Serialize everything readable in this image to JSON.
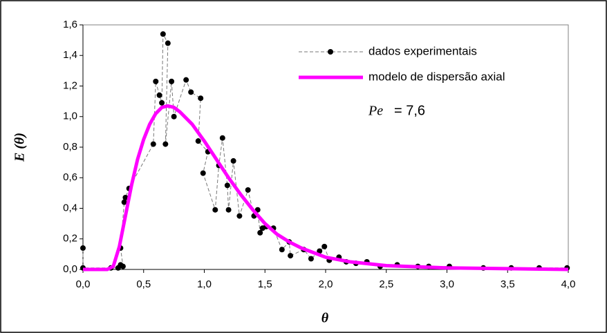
{
  "chart_data": {
    "type": "scatter-line",
    "xlabel": "θ",
    "ylabel": "E (θ)",
    "annotation": [
      "Pe",
      "= 7,6"
    ],
    "xlim": [
      0,
      4
    ],
    "ylim": [
      0,
      1.6
    ],
    "xticks": [
      {
        "value": 0,
        "label": "0,0"
      },
      {
        "value": 0.5,
        "label": "0,5"
      },
      {
        "value": 1,
        "label": "1,0"
      },
      {
        "value": 1.5,
        "label": "1,5"
      },
      {
        "value": 2,
        "label": "2,0"
      },
      {
        "value": 2.5,
        "label": "2,5"
      },
      {
        "value": 3,
        "label": "3,0"
      },
      {
        "value": 3.5,
        "label": "3,5"
      },
      {
        "value": 4,
        "label": "4,0"
      }
    ],
    "yticks": [
      {
        "value": 0,
        "label": "0,0"
      },
      {
        "value": 0.2,
        "label": "0,2"
      },
      {
        "value": 0.4,
        "label": "0,4"
      },
      {
        "value": 0.6,
        "label": "0,6"
      },
      {
        "value": 0.8,
        "label": "0,8"
      },
      {
        "value": 1,
        "label": "1,0"
      },
      {
        "value": 1.2,
        "label": "1,2"
      },
      {
        "value": 1.4,
        "label": "1,4"
      },
      {
        "value": 1.6,
        "label": "1,6"
      }
    ],
    "legend": "top-right",
    "series": [
      {
        "name": "dados experimentais",
        "color": "#000000",
        "style": "dashed-markers",
        "x": [
          0,
          0,
          0.23,
          0.29,
          0.31,
          0.33,
          0.31,
          0.34,
          0.35,
          0.38,
          0.58,
          0.6,
          0.63,
          0.65,
          0.66,
          0.7,
          0.68,
          0.73,
          0.75,
          0.85,
          0.89,
          0.97,
          0.95,
          1.03,
          0.99,
          1.09,
          1.12,
          1.15,
          1.19,
          1.2,
          1.24,
          1.29,
          1.36,
          1.41,
          1.44,
          1.46,
          1.48,
          1.51,
          1.57,
          1.64,
          1.7,
          1.71,
          1.82,
          1.88,
          1.95,
          1.99,
          2.03,
          2.11,
          2.17,
          2.25,
          2.34,
          2.45,
          2.59,
          2.76,
          2.85,
          3.02,
          3.3,
          3.53,
          3.76,
          3.99
        ],
        "values": [
          0.14,
          0.01,
          0.01,
          0.01,
          0.03,
          0.02,
          0.14,
          0.44,
          0.47,
          0.53,
          0.82,
          1.23,
          1.14,
          1.09,
          1.54,
          1.48,
          0.82,
          1.23,
          1.0,
          1.24,
          1.16,
          1.12,
          0.84,
          0.77,
          0.63,
          0.39,
          0.68,
          0.86,
          0.55,
          0.39,
          0.71,
          0.35,
          0.52,
          0.35,
          0.39,
          0.24,
          0.27,
          0.28,
          0.27,
          0.13,
          0.18,
          0.09,
          0.13,
          0.07,
          0.12,
          0.15,
          0.06,
          0.08,
          0.05,
          0.04,
          0.05,
          0.02,
          0.03,
          0.02,
          0.02,
          0.02,
          0.01,
          0.01,
          0.01,
          0.01
        ]
      },
      {
        "name": "modelo de dispersão axial",
        "color": "#ff00ff",
        "style": "line",
        "x": [
          0,
          0.2,
          0.25,
          0.3,
          0.35,
          0.4,
          0.45,
          0.5,
          0.55,
          0.6,
          0.65,
          0.7,
          0.75,
          0.8,
          0.9,
          1.0,
          1.1,
          1.2,
          1.3,
          1.4,
          1.5,
          1.6,
          1.7,
          1.8,
          2.0,
          2.2,
          2.5,
          3.0,
          3.5,
          4.0
        ],
        "values": [
          0,
          0,
          0.02,
          0.15,
          0.35,
          0.55,
          0.72,
          0.85,
          0.95,
          1.02,
          1.06,
          1.07,
          1.06,
          1.03,
          0.95,
          0.84,
          0.72,
          0.6,
          0.49,
          0.39,
          0.3,
          0.23,
          0.18,
          0.14,
          0.08,
          0.05,
          0.025,
          0.01,
          0.005,
          0
        ]
      }
    ]
  }
}
